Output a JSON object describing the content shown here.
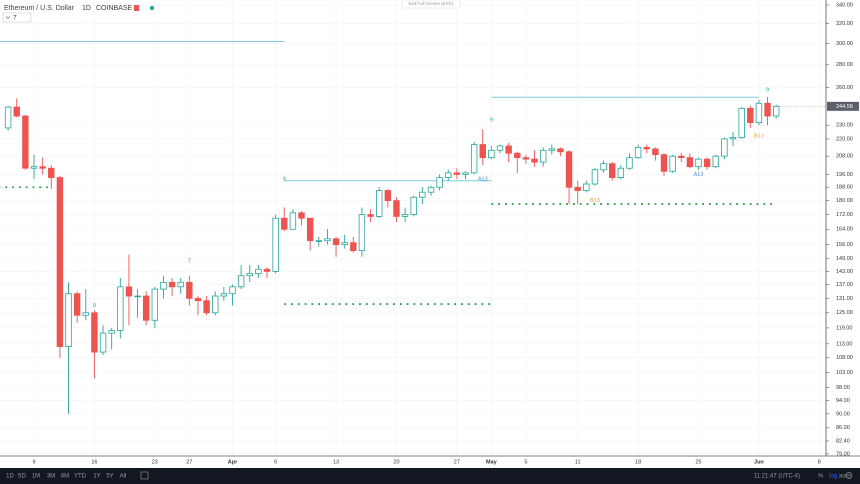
{
  "chart_data": {
    "type": "candlestick",
    "title": "Ethereum / U.S. Dollar",
    "interval": "1D",
    "exchange": "COINBASE",
    "indicator_setting": "7",
    "fullscreen_hint": "Exit Full Screen (ESC)",
    "log_scale": true,
    "grid": true,
    "up_color": "#26a69a",
    "down_color": "#ef5350",
    "categories": [
      null,
      null,
      null,
      "9",
      null,
      null,
      null,
      null,
      null,
      null,
      "16",
      null,
      null,
      null,
      null,
      null,
      null,
      "23",
      null,
      null,
      null,
      "27",
      null,
      null,
      null,
      null,
      "Apr",
      null,
      null,
      null,
      null,
      "6",
      null,
      null,
      null,
      null,
      null,
      null,
      "13",
      null,
      null,
      null,
      null,
      null,
      null,
      "20",
      null,
      null,
      null,
      null,
      null,
      null,
      "27",
      null,
      null,
      null,
      "May",
      null,
      null,
      null,
      "5",
      null,
      null,
      null,
      null,
      null,
      "11",
      null,
      null,
      null,
      null,
      null,
      null,
      "18",
      null,
      null,
      null,
      null,
      null,
      null,
      "25",
      null,
      null,
      null,
      null,
      null,
      null,
      "Jun",
      null,
      null,
      null,
      null,
      null,
      null,
      "8"
    ],
    "open": [
      228,
      244,
      237,
      200,
      201,
      200,
      194,
      112,
      133,
      124,
      125,
      110,
      117,
      118,
      136,
      132,
      132,
      122,
      135,
      138,
      136,
      138,
      131,
      130,
      125,
      132,
      133,
      136,
      141,
      142,
      144,
      143,
      170,
      164,
      173,
      170,
      158,
      158,
      159,
      156,
      157,
      153,
      172,
      171,
      186,
      180,
      171,
      172,
      182,
      185,
      188,
      194,
      197,
      196,
      197,
      216,
      207,
      212,
      215,
      210,
      207,
      206,
      204,
      212,
      213,
      211,
      188,
      186,
      190,
      199,
      203,
      194,
      200,
      207,
      214,
      213,
      209,
      198,
      208,
      207,
      201,
      206,
      201,
      208,
      220,
      221,
      243,
      232,
      247,
      237,
      null,
      null,
      null,
      null,
      null
    ],
    "high": [
      245,
      251,
      238,
      209,
      207,
      202,
      195,
      138,
      134,
      135,
      126,
      120,
      119,
      140,
      151,
      135,
      134,
      136,
      141,
      140,
      140,
      141,
      132,
      132,
      134,
      136,
      137,
      146,
      146,
      146,
      145,
      172,
      176,
      175,
      174,
      170,
      160,
      164,
      160,
      161,
      160,
      176,
      175,
      188,
      187,
      182,
      176,
      183,
      188,
      189,
      196,
      199,
      200,
      198,
      218,
      227,
      215,
      216,
      217,
      211,
      209,
      212,
      214,
      216,
      214,
      212,
      192,
      192,
      200,
      205,
      204,
      202,
      210,
      216,
      216,
      214,
      210,
      209,
      210,
      210,
      207,
      207,
      209,
      221,
      225,
      244,
      245,
      250,
      252,
      246,
      null,
      null,
      null,
      null,
      null
    ],
    "low": [
      226,
      236,
      199,
      193,
      196,
      187,
      108,
      90,
      121,
      122,
      101,
      109,
      111,
      115,
      120,
      123,
      120,
      119,
      131,
      132,
      133,
      128,
      124,
      124,
      124,
      130,
      128,
      135,
      138,
      140,
      140,
      142,
      163,
      164,
      166,
      153,
      155,
      156,
      150,
      154,
      152,
      150,
      168,
      170,
      176,
      168,
      168,
      171,
      178,
      183,
      186,
      192,
      193,
      193,
      196,
      202,
      206,
      210,
      204,
      197,
      203,
      201,
      201,
      209,
      208,
      178,
      178,
      185,
      189,
      197,
      192,
      193,
      199,
      206,
      210,
      205,
      195,
      197,
      204,
      200,
      199,
      199,
      200,
      206,
      215,
      220,
      228,
      230,
      230,
      235,
      null,
      null,
      null,
      null,
      null
    ],
    "close": [
      244,
      237,
      200,
      201,
      200,
      194,
      112,
      133,
      124,
      125,
      110,
      117,
      118,
      136,
      132,
      132,
      122,
      135,
      138,
      136,
      138,
      131,
      130,
      125,
      132,
      133,
      136,
      141,
      142,
      144,
      143,
      170,
      164,
      173,
      170,
      158,
      158,
      159,
      156,
      157,
      153,
      172,
      171,
      186,
      180,
      171,
      172,
      182,
      185,
      188,
      194,
      197,
      196,
      197,
      216,
      207,
      212,
      215,
      210,
      207,
      206,
      204,
      212,
      213,
      211,
      188,
      186,
      190,
      199,
      203,
      194,
      200,
      207,
      214,
      213,
      209,
      198,
      208,
      207,
      201,
      206,
      201,
      208,
      220,
      221,
      243,
      232,
      247,
      237,
      244.58,
      null,
      null,
      null,
      null,
      null
    ],
    "ylim": [
      76.2,
      345.6
    ],
    "yticks": [
      {
        "value": 340,
        "label": "340.00"
      },
      {
        "value": 320,
        "label": "320.00"
      },
      {
        "value": 300,
        "label": "300.00"
      },
      {
        "value": 280,
        "label": "280.00"
      },
      {
        "value": 260,
        "label": "260.00"
      },
      {
        "value": 230,
        "label": "230.00"
      },
      {
        "value": 220,
        "label": "220.00"
      },
      {
        "value": 208,
        "label": "208.00"
      },
      {
        "value": 196,
        "label": "196.00"
      },
      {
        "value": 188,
        "label": "188.00"
      },
      {
        "value": 180,
        "label": "180.00"
      },
      {
        "value": 172,
        "label": "172.00"
      },
      {
        "value": 164,
        "label": "164.00"
      },
      {
        "value": 156,
        "label": "156.00"
      },
      {
        "value": 149,
        "label": "149.00"
      },
      {
        "value": 143,
        "label": "143.00"
      },
      {
        "value": 137,
        "label": "137.00"
      },
      {
        "value": 131,
        "label": "131.00"
      },
      {
        "value": 125,
        "label": "125.00"
      },
      {
        "value": 119,
        "label": "119.00"
      },
      {
        "value": 113,
        "label": "113.00"
      },
      {
        "value": 108,
        "label": "108.00"
      },
      {
        "value": 103,
        "label": "103.00"
      },
      {
        "value": 98,
        "label": "98.00"
      },
      {
        "value": 94,
        "label": "94.00"
      },
      {
        "value": 90,
        "label": "90.00"
      },
      {
        "value": 86,
        "label": "86.00"
      },
      {
        "value": 82.4,
        "label": "82.40"
      },
      {
        "value": 79,
        "label": "79.00"
      }
    ],
    "levels": [
      {
        "value": 302,
        "from": 0,
        "to": 32,
        "color": "#6cc3dc",
        "style": "solid"
      },
      {
        "value": 192,
        "from": 32,
        "to": 56,
        "color": "#6cc3dc",
        "style": "solid"
      },
      {
        "value": 252,
        "from": 56,
        "to": 87,
        "color": "#6cc3dc",
        "style": "solid"
      },
      {
        "value": 188,
        "from": 0,
        "to": 5,
        "color": "#2e9e4f",
        "style": "dotted"
      },
      {
        "value": 128.6,
        "from": 32,
        "to": 56,
        "color": "#2e9e4f",
        "style": "dotted"
      },
      {
        "value": 178,
        "from": 56,
        "to": 89,
        "color": "#2e9e4f",
        "style": "dotted"
      }
    ],
    "annotations": [
      {
        "text": "9",
        "at": 10,
        "price": 128,
        "color": "#26a69a"
      },
      {
        "text": "7",
        "at": 21,
        "price": 148,
        "color": "#ef5350"
      },
      {
        "text": "9",
        "at": 32,
        "price": 193,
        "color": "#26a69a"
      },
      {
        "text": "9",
        "at": 56,
        "price": 234,
        "color": "#26a69a"
      },
      {
        "text": "A13",
        "at": 55,
        "price": 193,
        "color": "#4a90d9"
      },
      {
        "text": "B13",
        "at": 68,
        "price": 180,
        "color": "#f0a030"
      },
      {
        "text": "A13",
        "at": 80,
        "price": 196,
        "color": "#4a90d9"
      },
      {
        "text": "B13",
        "at": 87,
        "price": 222,
        "color": "#f0a030"
      },
      {
        "text": "9",
        "at": 88,
        "price": 258,
        "color": "#26a69a"
      }
    ],
    "toolbar": {
      "ranges": [
        "1D",
        "5D",
        "1M",
        "3M",
        "6M",
        "YTD",
        "1Y",
        "5Y",
        "All"
      ],
      "clock": "11:21:47 (UTC-4)",
      "options": [
        "%",
        "log",
        "auto"
      ]
    }
  }
}
